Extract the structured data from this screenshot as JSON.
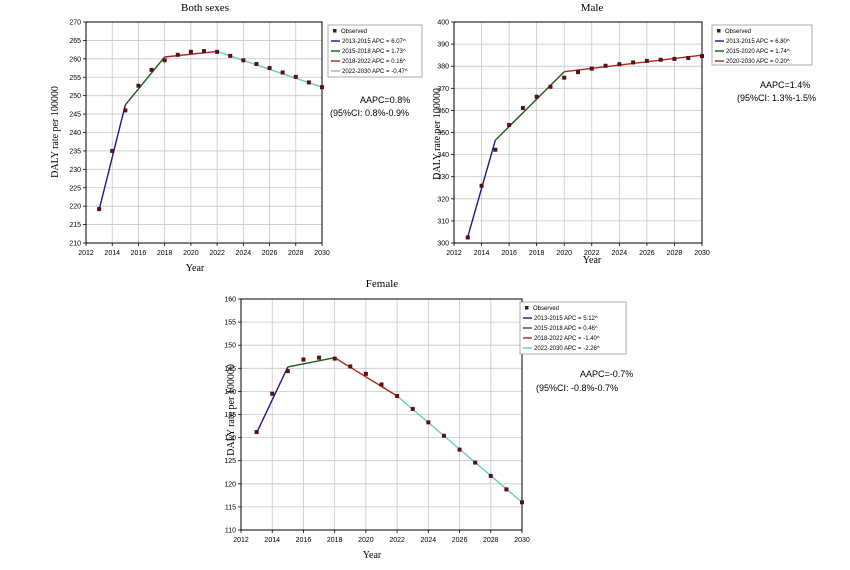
{
  "chart_data": [
    {
      "type": "line",
      "title": "Both sexes",
      "xlabel": "Year",
      "ylabel": "DALY rate per 100000",
      "xlim": [
        2012,
        2030
      ],
      "ylim": [
        210,
        270
      ],
      "x_ticks": [
        "2012",
        "2014",
        "2016",
        "2018",
        "2020",
        "2022",
        "2024",
        "2026",
        "2028",
        "2030"
      ],
      "y_ticks": [
        "210",
        "215",
        "220",
        "225",
        "230",
        "235",
        "240",
        "245",
        "250",
        "255",
        "260",
        "265",
        "270"
      ],
      "observed": {
        "x": [
          2013,
          2014,
          2015,
          2016,
          2017,
          2018,
          2019,
          2020,
          2021,
          2022,
          2023,
          2024,
          2025,
          2026,
          2027,
          2028,
          2029,
          2030
        ],
        "y": [
          219.2,
          235.0,
          246.0,
          252.7,
          257.0,
          259.6,
          261.1,
          261.9,
          262.1,
          261.9,
          260.8,
          259.6,
          258.6,
          257.5,
          256.3,
          255.1,
          253.6,
          252.3
        ]
      },
      "segments": [
        {
          "x": [
            2013,
            2015
          ],
          "y": [
            219.0,
            247.5
          ],
          "color": "#1a1a8c"
        },
        {
          "x": [
            2015,
            2018
          ],
          "y": [
            247.5,
            260.5
          ],
          "color": "#1b5e20"
        },
        {
          "x": [
            2018,
            2022
          ],
          "y": [
            260.5,
            262.0
          ],
          "color": "#b22222"
        },
        {
          "x": [
            2022,
            2030
          ],
          "y": [
            262.0,
            252.3
          ],
          "color": "#66cccc"
        }
      ],
      "legend": {
        "observed": "Observed",
        "items": [
          "2013-2015 APC = 6.07^",
          "2015-2018 APC = 1.73^",
          "2018-2022 APC = 0.16^",
          "2022-2030 APC = -0.47^"
        ]
      },
      "aapc": "AAPC=0.8%",
      "ci": "(95%CI: 0.8%-0.9%"
    },
    {
      "type": "line",
      "title": "Male",
      "xlabel": "Year",
      "ylabel": "DALY rate per 100000",
      "xlim": [
        2012,
        2030
      ],
      "ylim": [
        300,
        400
      ],
      "x_ticks": [
        "2012",
        "2014",
        "2016",
        "2018",
        "2020",
        "2022",
        "2024",
        "2026",
        "2028",
        "2030"
      ],
      "y_ticks": [
        "300",
        "310",
        "320",
        "330",
        "340",
        "350",
        "360",
        "370",
        "380",
        "390",
        "400"
      ],
      "observed": {
        "x": [
          2013,
          2014,
          2015,
          2016,
          2017,
          2018,
          2019,
          2020,
          2021,
          2022,
          2023,
          2024,
          2025,
          2026,
          2027,
          2028,
          2029,
          2030
        ],
        "y": [
          302.5,
          325.9,
          342.2,
          353.4,
          361.1,
          366.2,
          370.7,
          374.8,
          377.3,
          378.9,
          380.2,
          380.9,
          381.7,
          382.4,
          382.9,
          383.3,
          383.7,
          384.6
        ]
      },
      "segments": [
        {
          "x": [
            2013,
            2015
          ],
          "y": [
            302.8,
            346.5
          ],
          "color": "#1a1a8c"
        },
        {
          "x": [
            2015,
            2020
          ],
          "y": [
            346.5,
            377.5
          ],
          "color": "#1b5e20"
        },
        {
          "x": [
            2020,
            2030
          ],
          "y": [
            377.5,
            385.0
          ],
          "color": "#b22222"
        }
      ],
      "legend": {
        "observed": "Observed",
        "items": [
          "2013-2015 APC = 6.80^",
          "2015-2020 APC = 1.74^",
          "2020-2030 APC = 0.20^"
        ]
      },
      "aapc": "AAPC=1.4%",
      "ci": "(95%CI: 1.3%-1.5%"
    },
    {
      "type": "line",
      "title": "Female",
      "xlabel": "Year",
      "ylabel": "DALY rate per 100000",
      "xlim": [
        2012,
        2030
      ],
      "ylim": [
        110,
        160
      ],
      "x_ticks": [
        "2012",
        "2014",
        "2016",
        "2018",
        "2020",
        "2022",
        "2024",
        "2026",
        "2028",
        "2030"
      ],
      "y_ticks": [
        "110",
        "115",
        "120",
        "125",
        "130",
        "135",
        "140",
        "145",
        "150",
        "155",
        "160"
      ],
      "observed": {
        "x": [
          2013,
          2014,
          2015,
          2016,
          2017,
          2018,
          2019,
          2020,
          2021,
          2022,
          2023,
          2024,
          2025,
          2026,
          2027,
          2028,
          2029,
          2030
        ],
        "y": [
          131.2,
          139.5,
          144.4,
          146.9,
          147.3,
          147.1,
          145.4,
          143.8,
          141.5,
          139.0,
          136.2,
          133.3,
          130.4,
          127.4,
          124.6,
          121.7,
          118.8,
          116.0
        ]
      },
      "segments": [
        {
          "x": [
            2013,
            2015
          ],
          "y": [
            131.0,
            145.3
          ],
          "color": "#1a1a8c"
        },
        {
          "x": [
            2015,
            2018
          ],
          "y": [
            145.3,
            147.3
          ],
          "color": "#1b5e20"
        },
        {
          "x": [
            2018,
            2022
          ],
          "y": [
            147.3,
            139.0
          ],
          "color": "#b22222"
        },
        {
          "x": [
            2022,
            2030
          ],
          "y": [
            139.0,
            116.0
          ],
          "color": "#66cccc"
        }
      ],
      "legend": {
        "observed": "Observed",
        "items": [
          "2013-2015 APC = 5.12^",
          "2015-2018 APC = 0.46^",
          "2018-2022 APC = -1.40^",
          "2022-2030 APC = -2.26^"
        ]
      },
      "aapc": "AAPC=-0.7%",
      "ci": "(95%CI: -0.8%-0.7%"
    }
  ],
  "colors": {
    "observed_marker": "#5a1010",
    "grid": "#c8c8c8",
    "axis": "#000000"
  }
}
